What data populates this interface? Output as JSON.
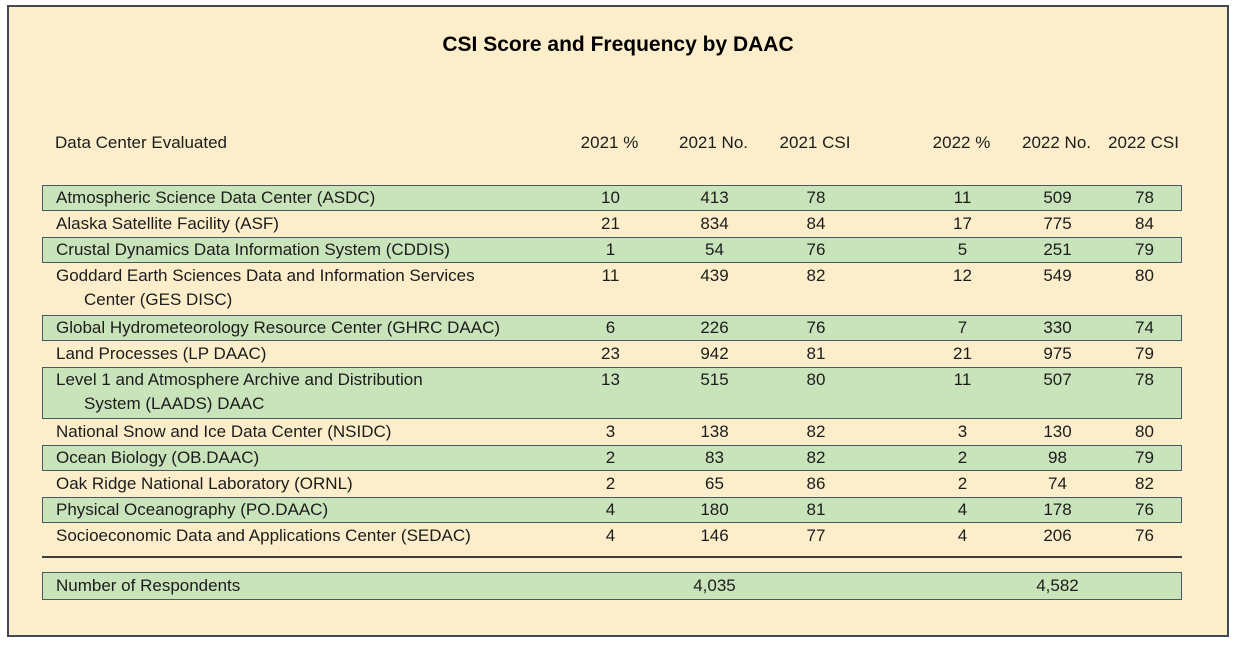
{
  "title": "CSI Score and Frequency by DAAC",
  "colors": {
    "background": "#fceeca",
    "highlight_row": "#c9e3bb",
    "frame_border": "#3f4a54",
    "row_border": "#4a5863",
    "text": "#1c1c1c"
  },
  "table": {
    "name_header": "Data Center Evaluated",
    "column_headers": [
      "2021 %",
      "2021 No.",
      "2021 CSI",
      "2022 %",
      "2022 No.",
      "2022 CSI"
    ],
    "rows": [
      {
        "name": "Atmospheric Science Data Center (ASDC)",
        "name2": "",
        "highlighted": true,
        "values": [
          "10",
          "413",
          "78",
          "11",
          "509",
          "78"
        ]
      },
      {
        "name": "Alaska Satellite Facility (ASF)",
        "name2": "",
        "highlighted": false,
        "values": [
          "21",
          "834",
          "84",
          "17",
          "775",
          "84"
        ]
      },
      {
        "name": "Crustal Dynamics Data Information System (CDDIS)",
        "name2": "",
        "highlighted": true,
        "values": [
          "1",
          "54",
          "76",
          "5",
          "251",
          "79"
        ]
      },
      {
        "name": "Goddard Earth Sciences Data and Information Services",
        "name2": "Center (GES DISC)",
        "highlighted": false,
        "values": [
          "11",
          "439",
          "82",
          "12",
          "549",
          "80"
        ]
      },
      {
        "name": "Global Hydrometeorology Resource Center (GHRC DAAC)",
        "name2": "",
        "highlighted": true,
        "values": [
          "6",
          "226",
          "76",
          "7",
          "330",
          "74"
        ]
      },
      {
        "name": "Land Processes (LP DAAC)",
        "name2": "",
        "highlighted": false,
        "values": [
          "23",
          "942",
          "81",
          "21",
          "975",
          "79"
        ]
      },
      {
        "name": "Level 1 and Atmosphere Archive and Distribution",
        "name2": "System (LAADS) DAAC",
        "highlighted": true,
        "values": [
          "13",
          "515",
          "80",
          "11",
          "507",
          "78"
        ]
      },
      {
        "name": "National Snow and Ice Data Center (NSIDC)",
        "name2": "",
        "highlighted": false,
        "values": [
          "3",
          "138",
          "82",
          "3",
          "130",
          "80"
        ]
      },
      {
        "name": "Ocean Biology (OB.DAAC)",
        "name2": "",
        "highlighted": true,
        "values": [
          "2",
          "83",
          "82",
          "2",
          "98",
          "79"
        ]
      },
      {
        "name": "Oak Ridge National Laboratory (ORNL)",
        "name2": "",
        "highlighted": false,
        "values": [
          "2",
          "65",
          "86",
          "2",
          "74",
          "82"
        ]
      },
      {
        "name": "Physical Oceanography (PO.DAAC)",
        "name2": "",
        "highlighted": true,
        "values": [
          "4",
          "180",
          "81",
          "4",
          "178",
          "76"
        ]
      },
      {
        "name": "Socioeconomic Data and Applications Center (SEDAC)",
        "name2": "",
        "highlighted": false,
        "values": [
          "4",
          "146",
          "77",
          "4",
          "206",
          "76"
        ]
      }
    ],
    "footer": {
      "label": "Number of Respondents",
      "total_2021_no": "4,035",
      "total_2022_no": "4,582"
    }
  }
}
